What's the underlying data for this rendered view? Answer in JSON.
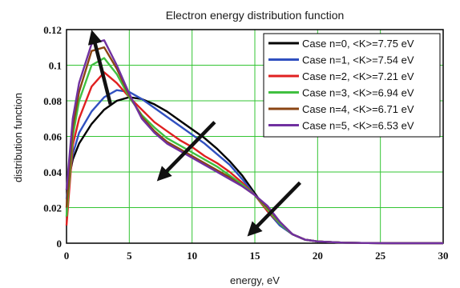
{
  "chart_data": {
    "type": "line",
    "title": "Electron energy distribution function",
    "xlabel": "energy, eV",
    "ylabel": "distribution function",
    "xlim": [
      0,
      30
    ],
    "ylim": [
      0,
      0.12
    ],
    "x_ticks": [
      "0",
      "5",
      "10",
      "15",
      "20",
      "25",
      "30"
    ],
    "y_ticks": [
      "0",
      "0.02",
      "0.04",
      "0.06",
      "0.08",
      "0.1",
      "0.12"
    ],
    "grid": true,
    "legend_position": "top-right",
    "series": [
      {
        "name": "Case n=0, <K>=7.75 eV",
        "color": "#000000",
        "x": [
          0,
          0.5,
          1,
          2,
          3,
          4,
          5,
          6,
          7,
          8,
          9,
          10,
          11,
          12,
          13,
          14,
          15,
          16,
          17,
          18,
          19,
          20,
          22,
          24,
          26,
          30
        ],
        "y": [
          0.03,
          0.047,
          0.056,
          0.067,
          0.075,
          0.08,
          0.082,
          0.081,
          0.078,
          0.074,
          0.069,
          0.064,
          0.059,
          0.053,
          0.046,
          0.038,
          0.028,
          0.018,
          0.01,
          0.005,
          0.002,
          0.001,
          0.0003,
          0.0001,
          0,
          0
        ]
      },
      {
        "name": "Case n=1, <K>=7.54 eV",
        "color": "#3050c0",
        "x": [
          0,
          0.5,
          1,
          2,
          3,
          4,
          5,
          6,
          7,
          8,
          9,
          10,
          11,
          12,
          13,
          14,
          15,
          16,
          17,
          18,
          19,
          20,
          22,
          24,
          26,
          30
        ],
        "y": [
          0.025,
          0.05,
          0.062,
          0.074,
          0.082,
          0.086,
          0.085,
          0.081,
          0.076,
          0.071,
          0.066,
          0.061,
          0.056,
          0.05,
          0.044,
          0.036,
          0.027,
          0.018,
          0.01,
          0.005,
          0.002,
          0.001,
          0.0003,
          0.0001,
          0,
          0
        ]
      },
      {
        "name": "Case n=2, <K>=7.21 eV",
        "color": "#e02020",
        "x": [
          0,
          0.5,
          1,
          2,
          3,
          4,
          5,
          6,
          7,
          8,
          9,
          10,
          11,
          12,
          13,
          14,
          15,
          16,
          17,
          18,
          19,
          20,
          22,
          24,
          26,
          30
        ],
        "y": [
          0.01,
          0.055,
          0.07,
          0.088,
          0.096,
          0.09,
          0.082,
          0.075,
          0.068,
          0.063,
          0.058,
          0.054,
          0.049,
          0.045,
          0.04,
          0.034,
          0.027,
          0.018,
          0.011,
          0.005,
          0.002,
          0.001,
          0.0003,
          0.0001,
          0,
          0
        ]
      },
      {
        "name": "Case n=3, <K>=6.94 eV",
        "color": "#40c040",
        "x": [
          0,
          0.5,
          1,
          2,
          3,
          4,
          5,
          6,
          7,
          8,
          9,
          10,
          11,
          12,
          13,
          14,
          15,
          16,
          17,
          18,
          19,
          20,
          22,
          24,
          26,
          30
        ],
        "y": [
          0.015,
          0.06,
          0.08,
          0.1,
          0.104,
          0.095,
          0.082,
          0.072,
          0.065,
          0.059,
          0.055,
          0.051,
          0.047,
          0.043,
          0.038,
          0.033,
          0.027,
          0.019,
          0.011,
          0.005,
          0.002,
          0.001,
          0.0003,
          0.0001,
          0,
          0
        ]
      },
      {
        "name": "Case n=4, <K>=6.71 eV",
        "color": "#8b4513",
        "x": [
          0,
          0.5,
          1,
          2,
          3,
          4,
          5,
          6,
          7,
          8,
          9,
          10,
          11,
          12,
          13,
          14,
          15,
          16,
          17,
          18,
          19,
          20,
          22,
          24,
          26,
          30
        ],
        "y": [
          0.02,
          0.065,
          0.085,
          0.108,
          0.11,
          0.098,
          0.083,
          0.071,
          0.063,
          0.057,
          0.053,
          0.049,
          0.045,
          0.041,
          0.037,
          0.032,
          0.027,
          0.02,
          0.012,
          0.005,
          0.002,
          0.001,
          0.0003,
          0.0001,
          0,
          0
        ]
      },
      {
        "name": "Case n=5, <K>=6.53 eV",
        "color": "#7030a0",
        "x": [
          0,
          0.5,
          1,
          2,
          3,
          4,
          5,
          6,
          7,
          8,
          9,
          10,
          11,
          12,
          13,
          14,
          15,
          16,
          17,
          18,
          19,
          20,
          22,
          24,
          26,
          30
        ],
        "y": [
          0.03,
          0.07,
          0.09,
          0.112,
          0.114,
          0.1,
          0.084,
          0.07,
          0.062,
          0.056,
          0.052,
          0.048,
          0.044,
          0.04,
          0.036,
          0.032,
          0.027,
          0.021,
          0.012,
          0.005,
          0.002,
          0.001,
          0.0003,
          0.0001,
          0,
          0
        ]
      }
    ],
    "annotations": [
      {
        "type": "arrow",
        "from": [
          3.5,
          0.078
        ],
        "to": [
          2.1,
          0.117
        ]
      },
      {
        "type": "arrow",
        "from": [
          11.8,
          0.068
        ],
        "to": [
          7.5,
          0.037
        ]
      },
      {
        "type": "arrow",
        "from": [
          18.6,
          0.034
        ],
        "to": [
          14.7,
          0.006
        ]
      }
    ]
  }
}
